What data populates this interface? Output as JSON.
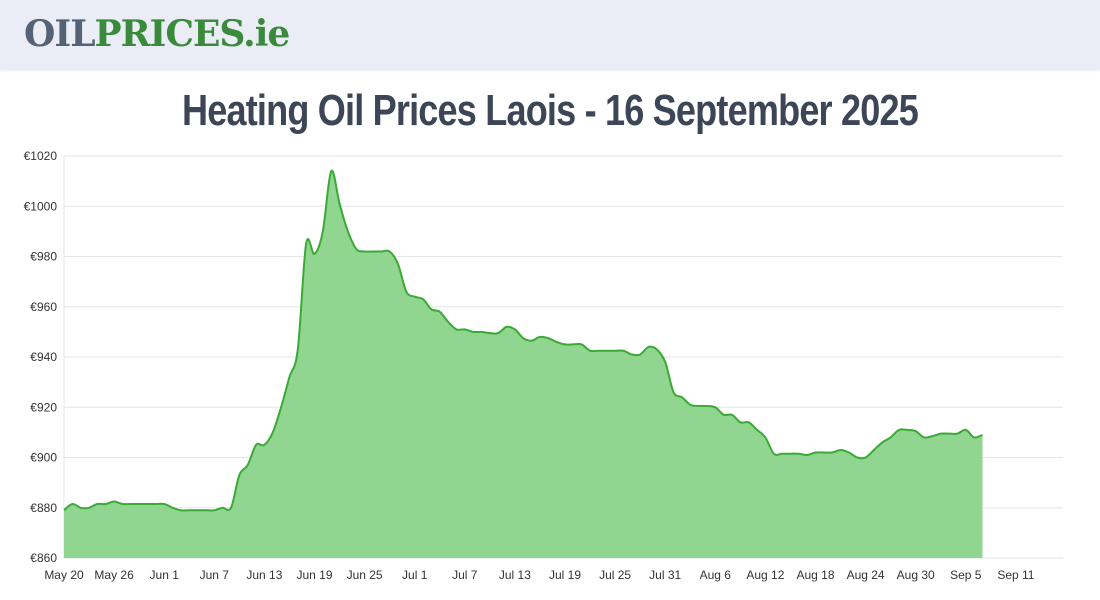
{
  "header": {
    "logo_part1": "OIL",
    "logo_part2": "PRICES",
    "logo_part3": ".ie"
  },
  "page": {
    "title": "Heating Oil Prices Laois - 16 September 2025"
  },
  "colors": {
    "line": "#3aaa35",
    "fill": "#90d590",
    "grid": "#e6e6e6"
  },
  "chart_data": {
    "type": "area",
    "title": "",
    "xlabel": "",
    "ylabel": "",
    "ylim": [
      860,
      1020
    ],
    "y_ticks": [
      860,
      880,
      900,
      920,
      940,
      960,
      980,
      1000,
      1020
    ],
    "y_tick_labels": [
      "€860",
      "€880",
      "€900",
      "€920",
      "€940",
      "€960",
      "€980",
      "€1000",
      "€1020"
    ],
    "x_tick_labels": [
      "May 20",
      "May 26",
      "Jun 1",
      "Jun 7",
      "Jun 13",
      "Jun 19",
      "Jun 25",
      "Jul 1",
      "Jul 7",
      "Jul 13",
      "Jul 19",
      "Jul 25",
      "Jul 31",
      "Aug 6",
      "Aug 12",
      "Aug 18",
      "Aug 24",
      "Aug 30",
      "Sep 5",
      "Sep 11"
    ],
    "x_tick_day_index": [
      0,
      6,
      12,
      18,
      24,
      30,
      36,
      42,
      48,
      54,
      60,
      66,
      72,
      78,
      84,
      90,
      96,
      102,
      108,
      114
    ],
    "grid": true,
    "legend": "none",
    "series": [
      {
        "values": [
          [
            0,
            879
          ],
          [
            1,
            881.5
          ],
          [
            2,
            880
          ],
          [
            3,
            880
          ],
          [
            4,
            881.5
          ],
          [
            5,
            881.5
          ],
          [
            6,
            882.5
          ],
          [
            7,
            881.5
          ],
          [
            8,
            881.5
          ],
          [
            9,
            881.5
          ],
          [
            10,
            881.5
          ],
          [
            11,
            881.5
          ],
          [
            12,
            881.5
          ],
          [
            13,
            880
          ],
          [
            14,
            879
          ],
          [
            15,
            879
          ],
          [
            16,
            879
          ],
          [
            17,
            879
          ],
          [
            18,
            879
          ],
          [
            19,
            880
          ],
          [
            20,
            880
          ],
          [
            21,
            893
          ],
          [
            22,
            897
          ],
          [
            23,
            905
          ],
          [
            24,
            905
          ],
          [
            25,
            910
          ],
          [
            26,
            920
          ],
          [
            27,
            932
          ],
          [
            28,
            943
          ],
          [
            29,
            985
          ],
          [
            30,
            981
          ],
          [
            31,
            990
          ],
          [
            32,
            1014
          ],
          [
            33,
            1001
          ],
          [
            34,
            990
          ],
          [
            35,
            983
          ],
          [
            36,
            982
          ],
          [
            37,
            982
          ],
          [
            38,
            982
          ],
          [
            39,
            982
          ],
          [
            40,
            977
          ],
          [
            41,
            966
          ],
          [
            42,
            964
          ],
          [
            43,
            963
          ],
          [
            44,
            959
          ],
          [
            45,
            958
          ],
          [
            46,
            954
          ],
          [
            47,
            951
          ],
          [
            48,
            951
          ],
          [
            49,
            950
          ],
          [
            50,
            950
          ],
          [
            51,
            949.5
          ],
          [
            52,
            949.5
          ],
          [
            53,
            952
          ],
          [
            54,
            951
          ],
          [
            55,
            947.5
          ],
          [
            56,
            946.5
          ],
          [
            57,
            948
          ],
          [
            58,
            947.5
          ],
          [
            59,
            946
          ],
          [
            60,
            945
          ],
          [
            61,
            945
          ],
          [
            62,
            945
          ],
          [
            63,
            942.5
          ],
          [
            64,
            942.5
          ],
          [
            65,
            942.5
          ],
          [
            66,
            942.5
          ],
          [
            67,
            942.5
          ],
          [
            68,
            941
          ],
          [
            69,
            941
          ],
          [
            70,
            944
          ],
          [
            71,
            943
          ],
          [
            72,
            938
          ],
          [
            73,
            926
          ],
          [
            74,
            924
          ],
          [
            75,
            921
          ],
          [
            76,
            920.5
          ],
          [
            77,
            920.5
          ],
          [
            78,
            920
          ],
          [
            79,
            917
          ],
          [
            80,
            917
          ],
          [
            81,
            914
          ],
          [
            82,
            914
          ],
          [
            83,
            911
          ],
          [
            84,
            908
          ],
          [
            85,
            901.5
          ],
          [
            86,
            901.5
          ],
          [
            87,
            901.5
          ],
          [
            88,
            901.5
          ],
          [
            89,
            901
          ],
          [
            90,
            902
          ],
          [
            91,
            902
          ],
          [
            92,
            902
          ],
          [
            93,
            903
          ],
          [
            94,
            902
          ],
          [
            95,
            900
          ],
          [
            96,
            900
          ],
          [
            97,
            903
          ],
          [
            98,
            906
          ],
          [
            99,
            908
          ],
          [
            100,
            911
          ],
          [
            101,
            911
          ],
          [
            102,
            910.5
          ],
          [
            103,
            908
          ],
          [
            104,
            908.5
          ],
          [
            105,
            909.5
          ],
          [
            106,
            909.5
          ],
          [
            107,
            909.5
          ],
          [
            108,
            911
          ],
          [
            109,
            908
          ],
          [
            110,
            909
          ]
        ]
      }
    ]
  }
}
